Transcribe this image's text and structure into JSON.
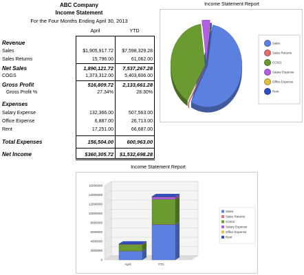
{
  "report": {
    "company": "ABC Company",
    "title": "Income Statement",
    "period": "For the Four Months Ending April 30, 2013",
    "col_april": "April",
    "col_ytd": "YTD"
  },
  "rows": {
    "revenue_header": "Revenue",
    "sales_label": "Sales",
    "sales_april": "$1,905,917.72",
    "sales_ytd": "$7,598,329.28",
    "returns_label": "Sales Returns",
    "returns_april": "15,796.00",
    "returns_ytd": "61,062.00",
    "net_label": "Net Sales",
    "net_april": "1,890,121.72",
    "net_ytd": "7,537,267.28",
    "cogs_label": "COGS",
    "cogs_april": "1,373,312.00",
    "cogs_ytd": "5,403,606.00",
    "gp_label": "Gross Profit",
    "gp_april": "516,809.72",
    "gp_ytd": "2,133,661.28",
    "gpp_label": "Gross Profit %",
    "gpp_april": "27.34%",
    "gpp_ytd": "28.30%",
    "expenses_header": "Expenses",
    "salary_label": "Salary Expense",
    "salary_april": "132,366.00",
    "salary_ytd": "507,563.00",
    "office_label": "Office Expense",
    "office_april": "6,887.00",
    "office_ytd": "26,713.00",
    "rent_label": "Rent",
    "rent_april": "17,251.00",
    "rent_ytd": "66,687.00",
    "total_label": "Total Expenses",
    "total_april": "156,504.00",
    "total_ytd": "600,963.00",
    "ni_label": "Net Income",
    "ni_april": "$360,305.72",
    "ni_ytd": "$1,532,698.28"
  },
  "colors": {
    "sales": "#5b80e0",
    "returns": "#e07070",
    "cogs": "#6a9a30",
    "salary": "#b060e0",
    "office": "#e0c040",
    "rent": "#3050c0"
  },
  "chart_data": [
    {
      "type": "pie",
      "title": "Income Statement Report",
      "categories": [
        "Sales",
        "Sales Returns",
        "COGS",
        "Salary Expense",
        "Office Expense",
        "Rent"
      ],
      "values": [
        7598329.28,
        61062.0,
        5403606.0,
        507563.0,
        26713.0,
        66687.0
      ],
      "legend": "right"
    },
    {
      "type": "bar",
      "stacked": true,
      "title": "Income Statement Report",
      "categories": [
        "April",
        "YTD"
      ],
      "series": [
        {
          "name": "Sales",
          "values": [
            1905917.72,
            7598329.28
          ]
        },
        {
          "name": "Sales Returns",
          "values": [
            15796.0,
            61062.0
          ]
        },
        {
          "name": "COGS",
          "values": [
            1373312.0,
            5403606.0
          ]
        },
        {
          "name": "Salary Expense",
          "values": [
            132366.0,
            507563.0
          ]
        },
        {
          "name": "Office Expense",
          "values": [
            6887.0,
            26713.0
          ]
        },
        {
          "name": "Rent",
          "values": [
            17251.0,
            66687.0
          ]
        }
      ],
      "ylim": [
        0,
        16000000
      ],
      "yticks": [
        "0",
        "2000000",
        "4000000",
        "6000000",
        "8000000",
        "10000000",
        "12000000",
        "14000000",
        "16000000"
      ],
      "legend": "right"
    }
  ]
}
